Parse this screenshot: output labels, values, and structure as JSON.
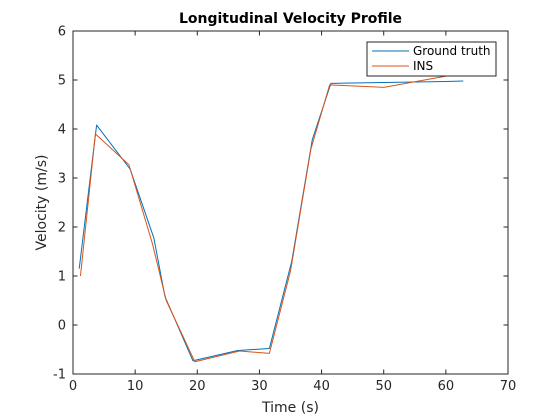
{
  "chart_data": {
    "type": "line",
    "title": "Longitudinal Velocity Profile",
    "xlabel": "Time (s)",
    "ylabel": "Velocity (m/s)",
    "xlim": [
      0,
      70
    ],
    "ylim": [
      -1,
      6
    ],
    "xticks": [
      0,
      10,
      20,
      30,
      40,
      50,
      60,
      70
    ],
    "yticks": [
      -1,
      0,
      1,
      2,
      3,
      4,
      5,
      6
    ],
    "grid": false,
    "legend_position": "top-right",
    "series": [
      {
        "name": "Ground truth",
        "color": "#0072BD",
        "x": [
          1.0,
          3.8,
          9.2,
          13.0,
          14.8,
          19.3,
          26.5,
          31.6,
          35.2,
          38.5,
          41.5,
          50.0,
          60.0,
          62.8
        ],
        "y": [
          1.15,
          4.08,
          3.18,
          1.78,
          0.58,
          -0.73,
          -0.52,
          -0.48,
          1.3,
          3.78,
          4.93,
          4.95,
          4.97,
          4.98
        ]
      },
      {
        "name": "INS",
        "color": "#D95319",
        "x": [
          1.2,
          3.6,
          9.0,
          12.8,
          15.0,
          19.6,
          26.8,
          31.6,
          35.0,
          38.3,
          41.3,
          50.0,
          60.0
        ],
        "y": [
          1.0,
          3.9,
          3.27,
          1.65,
          0.5,
          -0.75,
          -0.53,
          -0.58,
          1.1,
          3.6,
          4.9,
          4.85,
          5.08
        ]
      }
    ]
  }
}
